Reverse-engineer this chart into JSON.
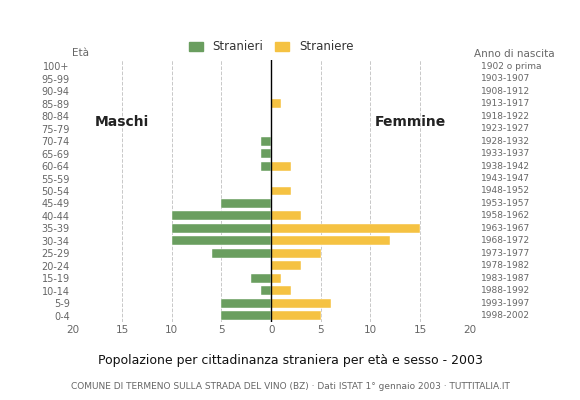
{
  "age_groups": [
    "0-4",
    "5-9",
    "10-14",
    "15-19",
    "20-24",
    "25-29",
    "30-34",
    "35-39",
    "40-44",
    "45-49",
    "50-54",
    "55-59",
    "60-64",
    "65-69",
    "70-74",
    "75-79",
    "80-84",
    "85-89",
    "90-94",
    "95-99",
    "100+"
  ],
  "birth_years": [
    "1998-2002",
    "1993-1997",
    "1988-1992",
    "1983-1987",
    "1978-1982",
    "1973-1977",
    "1968-1972",
    "1963-1967",
    "1958-1962",
    "1953-1957",
    "1948-1952",
    "1943-1947",
    "1938-1942",
    "1933-1937",
    "1928-1932",
    "1923-1927",
    "1918-1922",
    "1913-1917",
    "1908-1912",
    "1903-1907",
    "1902 o prima"
  ],
  "males": [
    5,
    5,
    1,
    2,
    0,
    6,
    10,
    10,
    10,
    5,
    0,
    0,
    1,
    1,
    1,
    0,
    0,
    0,
    0,
    0,
    0
  ],
  "females": [
    5,
    6,
    2,
    1,
    3,
    5,
    12,
    15,
    3,
    0,
    2,
    0,
    2,
    0,
    0,
    0,
    0,
    1,
    0,
    0,
    0
  ],
  "male_color": "#6a9e5f",
  "female_color": "#f5c242",
  "background_color": "#ffffff",
  "grid_color": "#c8c8c8",
  "title": "Popolazione per cittadinanza straniera per età e sesso - 2003",
  "subtitle": "COMUNE DI TERMENO SULLA STRADA DEL VINO (BZ) · Dati ISTAT 1° gennaio 2003 · TUTTITALIA.IT",
  "legend_stranieri": "Stranieri",
  "legend_straniere": "Straniere",
  "label_maschi": "Maschi",
  "label_femmine": "Femmine",
  "label_eta": "Età",
  "label_anno": "Anno di nascita",
  "xlim": 20
}
